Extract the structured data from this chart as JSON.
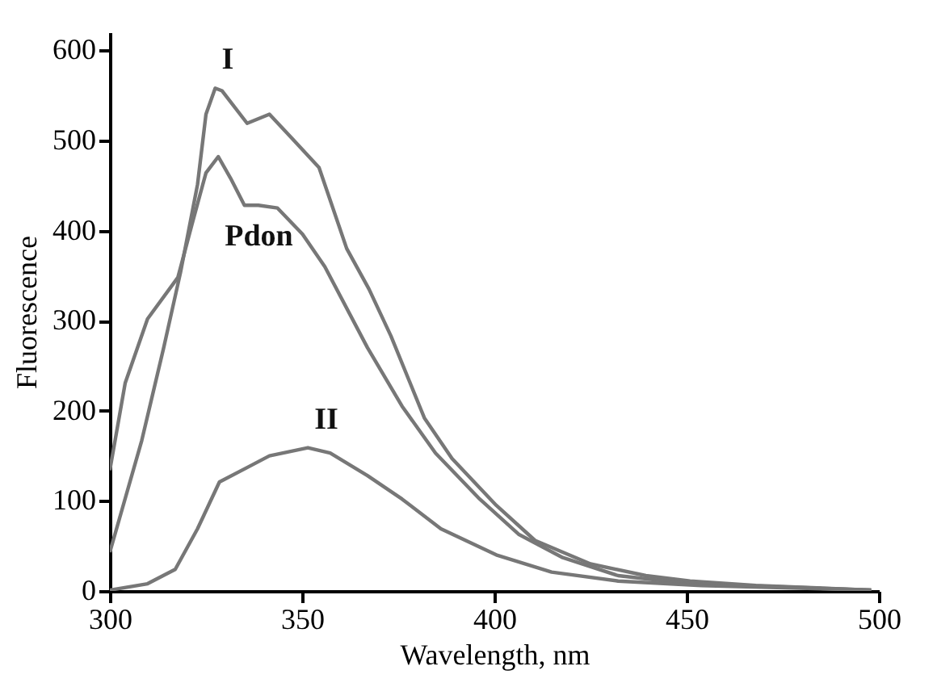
{
  "chart_data": {
    "type": "line",
    "xlabel": "Wavelength, nm",
    "ylabel": "Fluorescence",
    "xlim": [
      300,
      500
    ],
    "ylim": [
      0,
      620
    ],
    "xticks": [
      300,
      350,
      400,
      450,
      500
    ],
    "yticks": [
      0,
      100,
      200,
      300,
      400,
      500,
      600
    ],
    "grid": false,
    "legend": false,
    "marker": "none",
    "line_style": "solid",
    "series": [
      {
        "name": "I",
        "color": "#777777",
        "x": [
          300,
          308.3,
          314,
          318.4,
          322.8,
          325,
          327.4,
          329.2,
          335.7,
          341.5,
          347.2,
          354.4,
          361.6,
          367.4,
          373.1,
          381.8,
          389,
          400.5,
          410.6,
          425,
          439.4,
          450.9,
          468,
          498
        ],
        "values": [
          43,
          167,
          270,
          354,
          451,
          529,
          558,
          555,
          519,
          529,
          503,
          470,
          380,
          335,
          283,
          192,
          147,
          95,
          56,
          30,
          17,
          11,
          6,
          1
        ]
      },
      {
        "name": "Pdon",
        "color": "#777777",
        "x": [
          300,
          304,
          309.8,
          317.7,
          321.3,
          325,
          328.2,
          331.4,
          335,
          338.6,
          343.6,
          350.1,
          355.9,
          367,
          376,
          384.7,
          396.2,
          406.3,
          417.8,
          432.2,
          450.9,
          498
        ],
        "values": [
          134,
          231,
          302,
          348,
          406,
          464,
          482,
          458,
          428,
          428,
          425,
          396,
          360,
          270,
          205,
          153,
          102,
          63,
          37,
          17,
          8,
          1
        ]
      },
      {
        "name": "II",
        "color": "#777777",
        "x": [
          300,
          309.8,
          317,
          322.8,
          328.5,
          335.7,
          341.5,
          351.5,
          357.3,
          367,
          376,
          386.1,
          400.5,
          414.9,
          432.2,
          453.8,
          498
        ],
        "values": [
          1,
          8,
          24,
          69,
          121,
          137,
          150,
          159,
          153,
          128,
          102,
          69,
          40,
          21,
          11,
          6,
          1
        ]
      }
    ]
  }
}
